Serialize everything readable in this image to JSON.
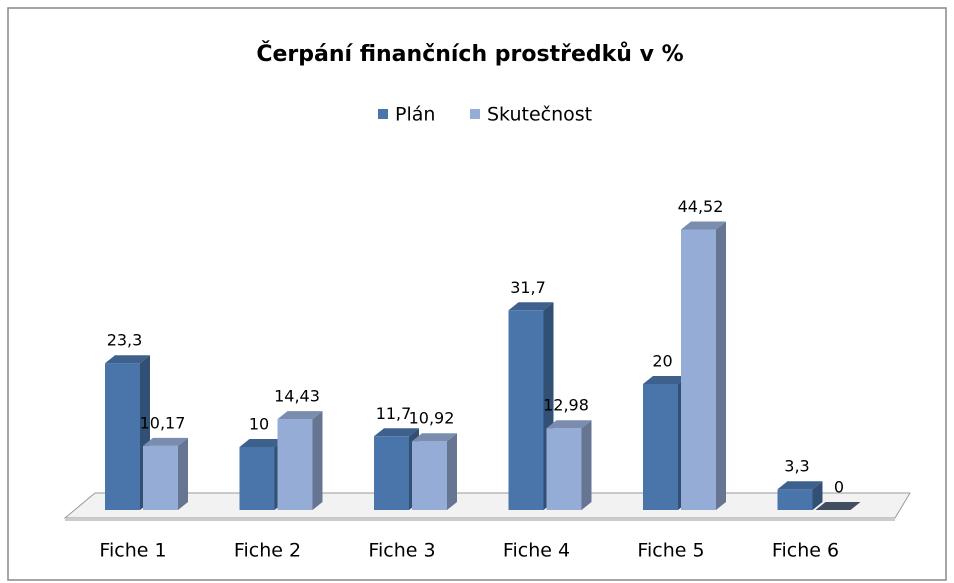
{
  "chart_data": {
    "type": "bar3d",
    "title": "Čerpání finančních prostředků v %",
    "categories": [
      "Fiche 1",
      "Fiche 2",
      "Fiche 3",
      "Fiche 4",
      "Fiche 5",
      "Fiche 6"
    ],
    "series": [
      {
        "name": "Plán",
        "color": "#4a75ab",
        "values": [
          23.3,
          10,
          11.7,
          31.7,
          20,
          3.3
        ],
        "value_labels": [
          "23,3",
          "10",
          "11,7",
          "31,7",
          "20",
          "3,3"
        ]
      },
      {
        "name": "Skutečnost",
        "color": "#95acd6",
        "values": [
          10.17,
          14.43,
          10.92,
          12.98,
          44.52,
          0
        ],
        "value_labels": [
          "10,17",
          "14,43",
          "10,92",
          "12,98",
          "44,52",
          "0"
        ]
      }
    ],
    "legend": "top"
  }
}
